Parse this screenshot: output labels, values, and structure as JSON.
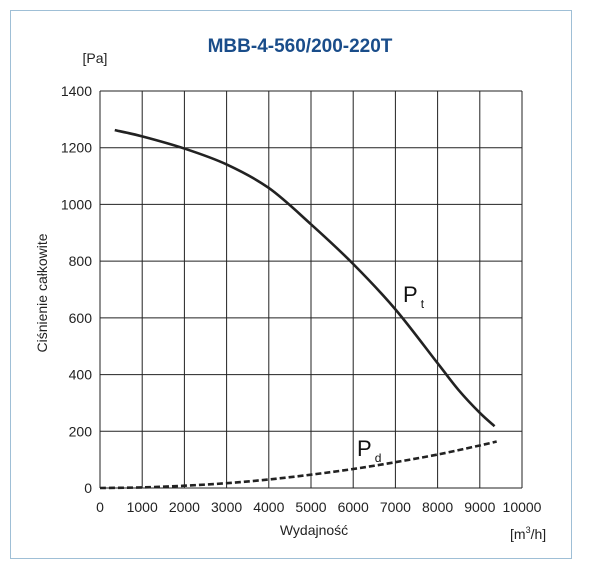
{
  "chart_data": {
    "type": "line",
    "title": "MBB-4-560/200-220T",
    "xlabel": "Wydajność",
    "ylabel": "Ciśnienie całkowite",
    "y_unit": "[Pa]",
    "x_unit": {
      "prefix": "[m",
      "sup": "3",
      "suffix": "/h]"
    },
    "xlim": [
      0,
      10000
    ],
    "ylim": [
      0,
      1400
    ],
    "x_ticks": [
      "0",
      "1000",
      "2000",
      "3000",
      "4000",
      "5000",
      "6000",
      "7000",
      "8000",
      "9000",
      "10000"
    ],
    "y_ticks": [
      "0",
      "200",
      "400",
      "600",
      "800",
      "1000",
      "1200",
      "1400"
    ],
    "grid": true,
    "series": [
      {
        "name": "P",
        "subscript": "t",
        "style": "solid",
        "color": "#222222",
        "x": [
          350,
          1000,
          2000,
          3000,
          4000,
          5000,
          6000,
          7000,
          8000,
          8500,
          9000,
          9350
        ],
        "y": [
          1262,
          1240,
          1197,
          1141,
          1058,
          930,
          790,
          630,
          440,
          345,
          265,
          218
        ]
      },
      {
        "name": "P",
        "subscript": "d",
        "style": "dashed",
        "color": "#222222",
        "x": [
          0,
          1000,
          2000,
          3000,
          4000,
          5000,
          6000,
          7000,
          8000,
          9000,
          9400
        ],
        "y": [
          0,
          2,
          8,
          17,
          30,
          47,
          67,
          91,
          118,
          150,
          164
        ]
      }
    ]
  }
}
